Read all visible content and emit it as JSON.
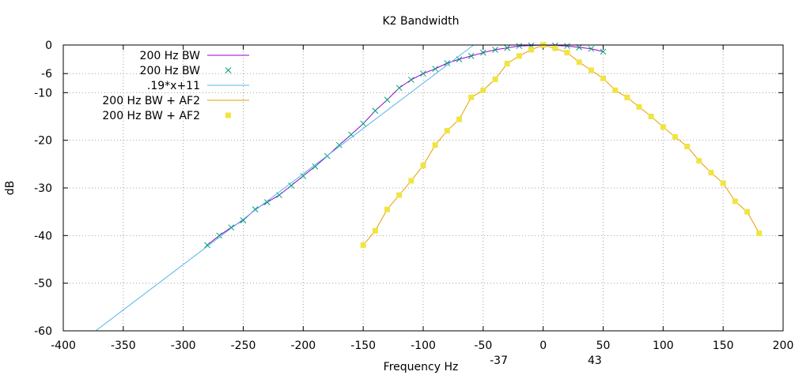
{
  "chart_data": {
    "type": "line",
    "title": "K2 Bandwidth",
    "xlabel": "Frequency Hz",
    "ylabel": "dB",
    "xlim": [
      -400,
      200
    ],
    "ylim": [
      -60,
      0
    ],
    "grid": true,
    "legend_position": "top-left",
    "xticks": [
      -400,
      -350,
      -300,
      -250,
      -200,
      -150,
      -100,
      -50,
      0,
      50,
      100,
      150,
      200
    ],
    "yticks": [
      0,
      -6,
      -10,
      -20,
      -30,
      -40,
      -50,
      -60
    ],
    "extra_xtick_labels": [
      {
        "value": -37,
        "label": "-37"
      },
      {
        "value": 43,
        "label": "43"
      }
    ],
    "series": [
      {
        "name": "200 Hz BW",
        "style": "line",
        "color": "#9400d3",
        "x": [
          -280,
          -270,
          -260,
          -250,
          -240,
          -230,
          -220,
          -210,
          -200,
          -190,
          -180,
          -170,
          -160,
          -150,
          -140,
          -130,
          -120,
          -110,
          -100,
          -90,
          -80,
          -70,
          -60,
          -50,
          -40,
          -30,
          -20,
          -10,
          0,
          10,
          20,
          30,
          40,
          50
        ],
        "y": [
          -42,
          -40,
          -38.3,
          -36.8,
          -34.5,
          -33,
          -31.5,
          -29.5,
          -27.5,
          -25.5,
          -23.3,
          -21,
          -18.8,
          -16.5,
          -13.8,
          -11.5,
          -9,
          -7.3,
          -6,
          -5,
          -3.8,
          -3,
          -2.3,
          -1.6,
          -1,
          -0.6,
          -0.2,
          -0.1,
          0,
          -0.1,
          -0.2,
          -0.5,
          -0.8,
          -1.4
        ]
      },
      {
        "name": "200 Hz BW",
        "style": "points",
        "color": "#009e73",
        "x": [
          -280,
          -270,
          -260,
          -250,
          -240,
          -230,
          -220,
          -210,
          -200,
          -190,
          -180,
          -170,
          -160,
          -150,
          -140,
          -130,
          -120,
          -110,
          -100,
          -90,
          -80,
          -70,
          -60,
          -50,
          -40,
          -30,
          -20,
          -10,
          0,
          10,
          20,
          30,
          40,
          50
        ],
        "y": [
          -42,
          -40,
          -38.3,
          -36.8,
          -34.5,
          -33,
          -31.5,
          -29.5,
          -27.5,
          -25.5,
          -23.3,
          -21,
          -18.8,
          -16.5,
          -13.8,
          -11.5,
          -9,
          -7.3,
          -6,
          -5,
          -3.8,
          -3,
          -2.3,
          -1.6,
          -1,
          -0.6,
          -0.2,
          -0.1,
          0,
          -0.1,
          -0.2,
          -0.5,
          -0.8,
          -1.4
        ]
      },
      {
        "name": ".19*x+11",
        "style": "line",
        "color": "#56b4e9",
        "x": [
          -373,
          -58
        ],
        "y": [
          -60,
          0
        ]
      },
      {
        "name": "200 Hz BW + AF2",
        "style": "line",
        "color": "#e69f00",
        "x": [
          -150,
          -140,
          -130,
          -120,
          -110,
          -100,
          -90,
          -80,
          -70,
          -60,
          -50,
          -40,
          -30,
          -20,
          -10,
          0,
          10,
          20,
          30,
          40,
          50,
          60,
          70,
          80,
          90,
          100,
          110,
          120,
          130,
          140,
          150,
          160,
          170,
          180
        ],
        "y": [
          -42,
          -39,
          -34.5,
          -31.5,
          -28.5,
          -25.3,
          -21,
          -18,
          -15.6,
          -11,
          -9.5,
          -7.2,
          -3.9,
          -2.3,
          -1,
          0,
          -0.7,
          -1.6,
          -3.6,
          -5.3,
          -7,
          -9.5,
          -11,
          -13,
          -15,
          -17.2,
          -19.3,
          -21.3,
          -24.3,
          -26.8,
          -29,
          -32.8,
          -35,
          -39.5
        ]
      },
      {
        "name": "200 Hz BW + AF2",
        "style": "points",
        "color": "#f0e442",
        "x": [
          -150,
          -140,
          -130,
          -120,
          -110,
          -100,
          -90,
          -80,
          -70,
          -60,
          -50,
          -40,
          -30,
          -20,
          -10,
          0,
          10,
          20,
          30,
          40,
          50,
          60,
          70,
          80,
          90,
          100,
          110,
          120,
          130,
          140,
          150,
          160,
          170,
          180
        ],
        "y": [
          -42,
          -39,
          -34.5,
          -31.5,
          -28.5,
          -25.3,
          -21,
          -18,
          -15.6,
          -11,
          -9.5,
          -7.2,
          -3.9,
          -2.3,
          -1,
          0,
          -0.7,
          -1.6,
          -3.6,
          -5.3,
          -7,
          -9.5,
          -11,
          -13,
          -15,
          -17.2,
          -19.3,
          -21.3,
          -24.3,
          -26.8,
          -29,
          -32.8,
          -35,
          -39.5
        ]
      }
    ]
  }
}
